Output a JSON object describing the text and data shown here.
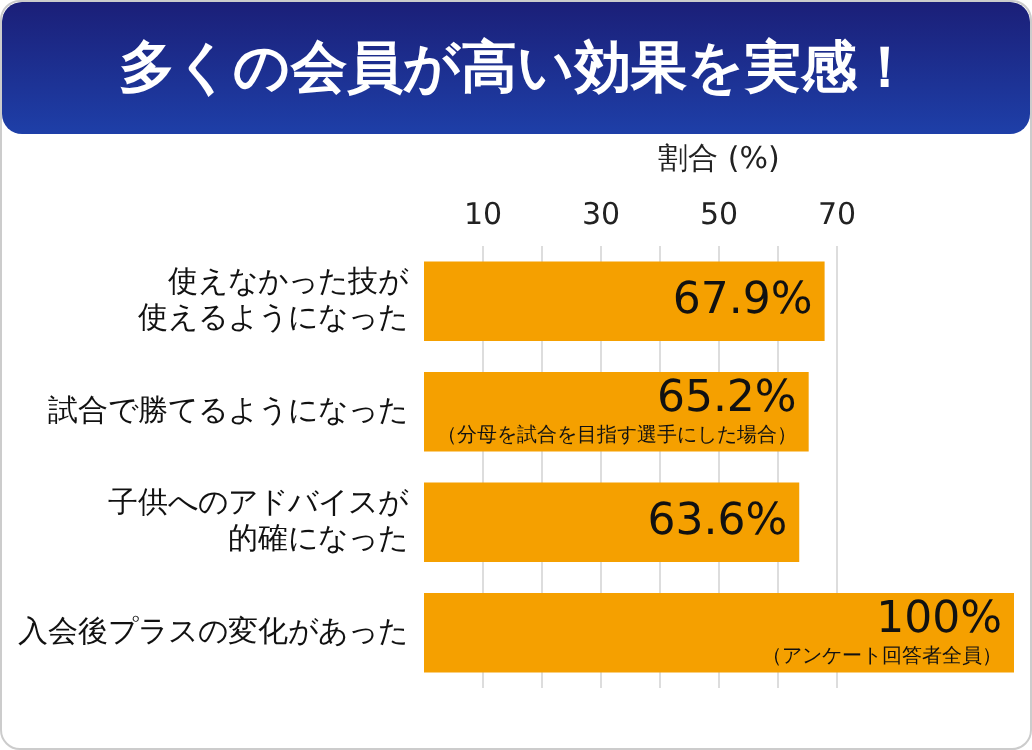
{
  "chart_data": {
    "type": "bar",
    "orientation": "horizontal",
    "title": "多くの会員が高い効果を実感！",
    "xlabel": "割合 (%)",
    "categories": [
      "使えなかった技が使えるようになった",
      "試合で勝てるようになった",
      "子供へのアドバイスが的確になった",
      "入会後プラスの変化があった"
    ],
    "values": [
      67.9,
      65.2,
      63.6,
      100
    ],
    "color": "#f5a000",
    "value_labels": [
      "67.9%",
      "65.2%",
      "63.6%",
      "100%"
    ],
    "annotations": [
      {
        "text": "（分母を試合を目指す選手にした場合）",
        "x": 65.2,
        "y": "試合で勝てるようになった"
      },
      {
        "text": "（アンケート回答者全員）",
        "x": 100,
        "y": "入会後プラスの変化があった"
      }
    ],
    "xlim": [
      0,
      100
    ],
    "xticks": [
      10,
      {
        "value": 20,
        "label": null
      },
      30,
      {
        "value": 40,
        "label": null
      },
      50,
      {
        "value": 60,
        "label": null
      },
      70
    ],
    "grid": "x",
    "legend": false
  }
}
